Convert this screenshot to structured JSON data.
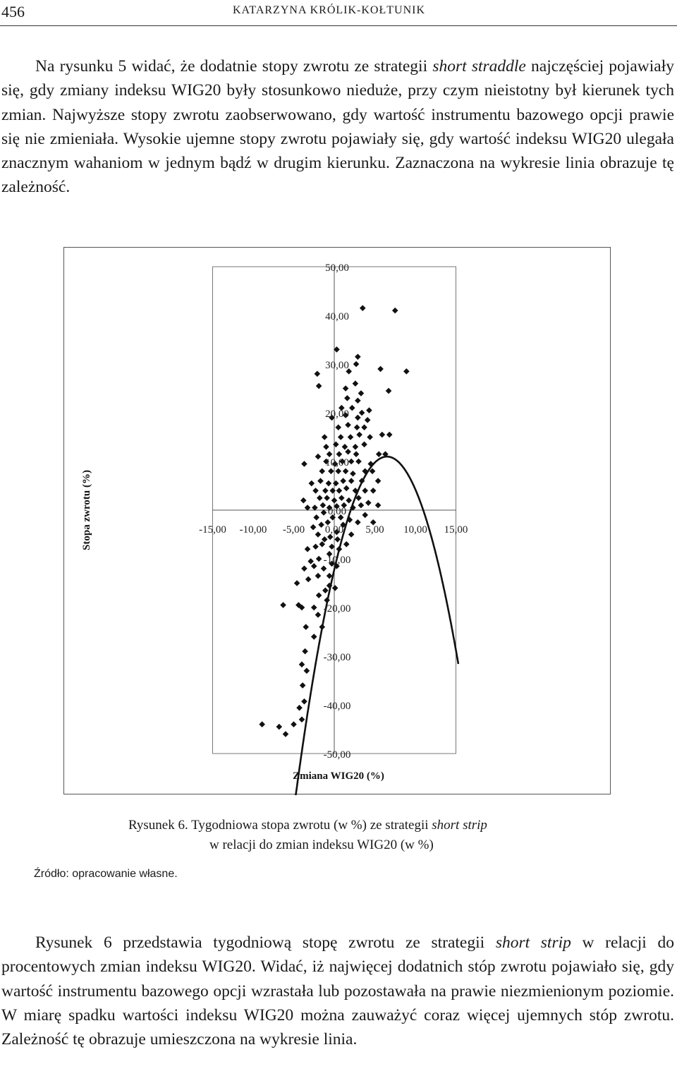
{
  "header": {
    "page_number": "456",
    "running_head": "KATARZYNA KRÓLIK-KOŁTUNIK"
  },
  "para1": [
    {
      "t": "Na rysunku 5 widać, że dodatnie stopy zwrotu ze strategii "
    },
    {
      "t": "short straddle",
      "i": true
    },
    {
      "t": " najczęściej pojawiały się, gdy zmiany indeksu WIG20 były stosunkowo nieduże, przy czym nieistotny był kierunek tych zmian. Najwyższe stopy zwrotu zaobserwowano, gdy wartość instrumentu bazowego opcji prawie się nie zmieniała. Wysokie ujemne stopy zwrotu pojawiały się, gdy wartość indeksu WIG20 ulegała znacznym wahaniom w jednym bądź w drugim kierunku. Zaznaczona na wykresie linia obrazuje tę zależność."
    }
  ],
  "chart_data": {
    "type": "scatter",
    "xlabel": "Zmiana WIG20 (%)",
    "ylabel": "Stopa zwrotu (%)",
    "xlim": [
      -15,
      15
    ],
    "ylim": [
      -50,
      50
    ],
    "x_ticks": [
      "-15,00",
      "-10,00",
      "-5,00",
      "0,00",
      "5,00",
      "10,00",
      "15,00"
    ],
    "y_ticks": [
      "50,00",
      "40,00",
      "30,00",
      "20,00",
      "10,00",
      "0,00",
      "-10,00",
      "-20,00",
      "-30,00",
      "-40,00",
      "-50,00"
    ],
    "grid": false,
    "trendline": {
      "type": "polynomial",
      "x_from": -7.6,
      "x_to": 15.3,
      "vertex_x": 6.5,
      "vertex_y": 11,
      "curvature": -0.55
    },
    "points": [
      [
        -8.9,
        -44
      ],
      [
        -6.8,
        -44.5
      ],
      [
        -6.0,
        -46
      ],
      [
        -5.0,
        -44
      ],
      [
        -4.0,
        -43
      ],
      [
        -4.3,
        -40.6
      ],
      [
        -3.7,
        -39.3
      ],
      [
        -3.9,
        -36
      ],
      [
        -3.4,
        -33
      ],
      [
        -4.0,
        -31.7
      ],
      [
        -3.6,
        -29
      ],
      [
        -6.3,
        -19.5
      ],
      [
        -4.4,
        -19.5
      ],
      [
        -4.0,
        -20
      ],
      [
        -3.5,
        -24
      ],
      [
        -2.5,
        -26
      ],
      [
        -1.5,
        -24
      ],
      [
        -2.0,
        -21.5
      ],
      [
        -2.5,
        -20
      ],
      [
        -0.9,
        -18.5
      ],
      [
        -1.9,
        -17.5
      ],
      [
        -1.1,
        -16.5
      ],
      [
        -0.6,
        -15.5
      ],
      [
        0.1,
        -16
      ],
      [
        -4.6,
        -15
      ],
      [
        -3.2,
        -14.2
      ],
      [
        -2.0,
        -13.5
      ],
      [
        -0.6,
        -13.5
      ],
      [
        -3.7,
        -12
      ],
      [
        -2.5,
        -11.5
      ],
      [
        -1.3,
        -12
      ],
      [
        -0.3,
        -11
      ],
      [
        0.3,
        -11.5
      ],
      [
        -2.9,
        -10.5
      ],
      [
        -1.9,
        -10
      ],
      [
        -0.6,
        -9
      ],
      [
        -3.3,
        -8
      ],
      [
        -2.3,
        -7.5
      ],
      [
        -1.5,
        -7
      ],
      [
        -0.3,
        -7.5
      ],
      [
        0.6,
        -8
      ],
      [
        -2.0,
        -5
      ],
      [
        -1.2,
        -6
      ],
      [
        -0.5,
        -5.5
      ],
      [
        0.4,
        -6
      ],
      [
        1.5,
        -7
      ],
      [
        -2.6,
        -3.5
      ],
      [
        -1.6,
        -3
      ],
      [
        -0.8,
        -2.5
      ],
      [
        0.3,
        -4.5
      ],
      [
        1.1,
        -3
      ],
      [
        2.1,
        -5
      ],
      [
        -2.2,
        -1.5
      ],
      [
        -1.3,
        -0.5
      ],
      [
        -0.2,
        -1.5
      ],
      [
        0.8,
        -1.5
      ],
      [
        1.9,
        -2
      ],
      [
        2.9,
        -2.5
      ],
      [
        3.8,
        -1
      ],
      [
        4.8,
        -2.5
      ],
      [
        -3.3,
        0.5
      ],
      [
        -2.4,
        0.5
      ],
      [
        -1.4,
        1
      ],
      [
        -0.6,
        0.5
      ],
      [
        0.3,
        0.8
      ],
      [
        1.2,
        1
      ],
      [
        2.3,
        0.5
      ],
      [
        3.3,
        1
      ],
      [
        -3.8,
        2
      ],
      [
        -1.8,
        2.5
      ],
      [
        -0.9,
        2.5
      ],
      [
        0.0,
        2
      ],
      [
        0.9,
        2.5
      ],
      [
        1.8,
        2
      ],
      [
        3.0,
        2.5
      ],
      [
        4.2,
        1.5
      ],
      [
        5.4,
        1
      ],
      [
        -2.3,
        4
      ],
      [
        -1.1,
        4
      ],
      [
        -0.2,
        4
      ],
      [
        0.6,
        4
      ],
      [
        1.5,
        4.5
      ],
      [
        2.6,
        4
      ],
      [
        3.8,
        4
      ],
      [
        4.8,
        4
      ],
      [
        -2.8,
        5.5
      ],
      [
        -1.7,
        6
      ],
      [
        -0.7,
        5.5
      ],
      [
        0.2,
        5.5
      ],
      [
        1.1,
        6
      ],
      [
        2.1,
        6
      ],
      [
        3.4,
        6
      ],
      [
        5.4,
        6
      ],
      [
        -1.5,
        8
      ],
      [
        -0.4,
        8
      ],
      [
        0.5,
        8
      ],
      [
        1.4,
        8
      ],
      [
        2.3,
        7.5
      ],
      [
        3.8,
        8
      ],
      [
        4.7,
        8
      ],
      [
        -3.7,
        9.5
      ],
      [
        -1.0,
        10
      ],
      [
        0.1,
        9.5
      ],
      [
        1.0,
        10
      ],
      [
        2.1,
        10
      ],
      [
        3.0,
        10
      ],
      [
        4.5,
        9.5
      ],
      [
        -2.0,
        11
      ],
      [
        -0.6,
        11.5
      ],
      [
        0.6,
        11.5
      ],
      [
        1.7,
        12
      ],
      [
        2.7,
        11.5
      ],
      [
        5.5,
        11.5
      ],
      [
        6.3,
        11.5
      ],
      [
        -1.0,
        13
      ],
      [
        0.2,
        13.5
      ],
      [
        1.3,
        13
      ],
      [
        2.6,
        13
      ],
      [
        3.7,
        13.5
      ],
      [
        -1.2,
        15
      ],
      [
        0.8,
        15
      ],
      [
        2.0,
        15
      ],
      [
        3.1,
        15.5
      ],
      [
        4.4,
        15
      ],
      [
        5.9,
        15.5
      ],
      [
        6.8,
        15.5
      ],
      [
        0.5,
        17
      ],
      [
        1.7,
        17.5
      ],
      [
        2.8,
        17
      ],
      [
        3.7,
        17
      ],
      [
        -0.3,
        19
      ],
      [
        1.4,
        19.5
      ],
      [
        2.9,
        19
      ],
      [
        4.1,
        18.5
      ],
      [
        0.9,
        21
      ],
      [
        2.2,
        21
      ],
      [
        3.4,
        20
      ],
      [
        4.3,
        20.5
      ],
      [
        1.6,
        23
      ],
      [
        2.9,
        22.5
      ],
      [
        3.3,
        24
      ],
      [
        -1.9,
        25.5
      ],
      [
        1.4,
        25
      ],
      [
        2.6,
        26
      ],
      [
        6.7,
        24.5
      ],
      [
        -2.1,
        28
      ],
      [
        1.8,
        28.5
      ],
      [
        2.7,
        30
      ],
      [
        5.7,
        29
      ],
      [
        8.9,
        28.5
      ],
      [
        0.3,
        33
      ],
      [
        2.9,
        31.5
      ],
      [
        3.5,
        41.5
      ],
      [
        7.5,
        41
      ]
    ]
  },
  "caption": {
    "prefix": "Rysunek 6.",
    "text_before": " Tygodniowa stopa zwrotu (w %) ze strategii ",
    "italic": "short strip",
    "line2": "w relacji do zmian indeksu WIG20 (w %)"
  },
  "source": "Źródło: opracowanie własne.",
  "para2": [
    {
      "t": "Rysunek 6 przedstawia tygodniową stopę zwrotu ze strategii "
    },
    {
      "t": "short strip",
      "i": true
    },
    {
      "t": " w relacji do procentowych zmian indeksu WIG20. Widać, iż najwięcej dodatnich stóp zwrotu pojawiało się, gdy wartość instrumentu bazowego opcji wzrastała lub pozostawała na prawie niezmienionym poziomie. W miarę spadku wartości indeksu WIG20 można zauważyć coraz więcej ujemnych stóp zwrotu. Zależność tę obrazuje umieszczona na wykresie linia."
    }
  ]
}
